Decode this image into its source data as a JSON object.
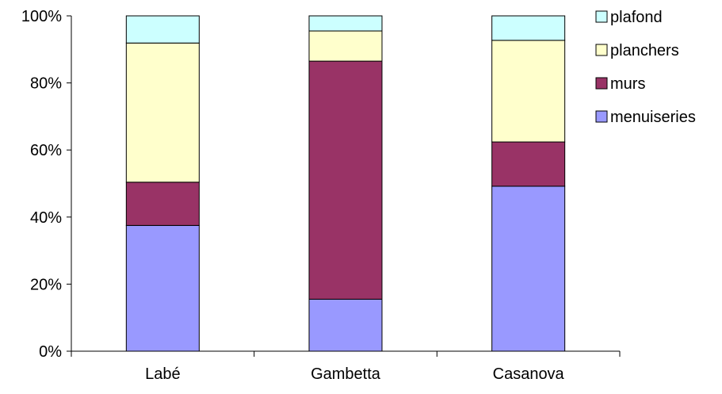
{
  "chart_data": {
    "type": "bar",
    "stacked": true,
    "percent_stacked": true,
    "categories": [
      "Labé",
      "Gambetta",
      "Casanova"
    ],
    "series": [
      {
        "name": "menuiseries",
        "color": "#9999ff",
        "values": [
          37.5,
          15.5,
          49.2
        ]
      },
      {
        "name": "murs",
        "color": "#993366",
        "values": [
          12.9,
          71.0,
          13.2
        ]
      },
      {
        "name": "planchers",
        "color": "#ffffcc",
        "values": [
          41.5,
          9.0,
          30.3
        ]
      },
      {
        "name": "plafond",
        "color": "#ccffff",
        "values": [
          8.1,
          4.5,
          7.3
        ]
      }
    ],
    "yticks": [
      "0%",
      "20%",
      "40%",
      "60%",
      "80%",
      "100%"
    ],
    "ylim": [
      0,
      100
    ],
    "grid": false,
    "legend": "right"
  }
}
